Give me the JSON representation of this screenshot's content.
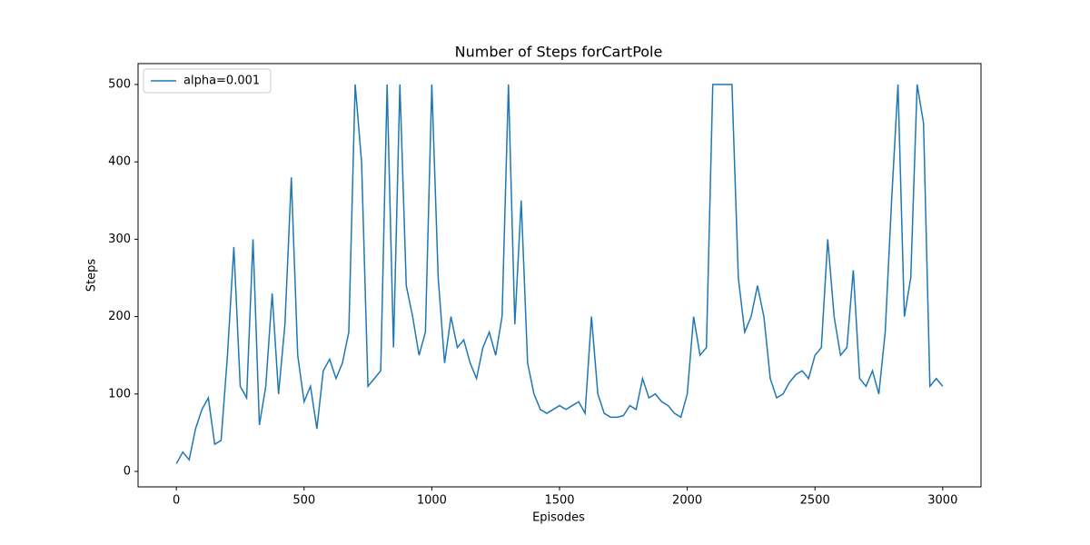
{
  "chart_data": {
    "type": "line",
    "title": "Number of Steps forCartPole",
    "x_label": "Episodes",
    "y_label": "Steps",
    "x": [
      0,
      25,
      50,
      75,
      100,
      125,
      150,
      175,
      200,
      225,
      250,
      275,
      300,
      325,
      350,
      375,
      400,
      425,
      450,
      475,
      500,
      525,
      550,
      575,
      600,
      625,
      650,
      675,
      700,
      725,
      750,
      775,
      800,
      825,
      850,
      875,
      900,
      925,
      950,
      975,
      1000,
      1025,
      1050,
      1075,
      1100,
      1125,
      1150,
      1175,
      1200,
      1225,
      1250,
      1275,
      1300,
      1325,
      1350,
      1375,
      1400,
      1425,
      1450,
      1475,
      1500,
      1525,
      1550,
      1575,
      1600,
      1625,
      1650,
      1675,
      1700,
      1725,
      1750,
      1775,
      1800,
      1825,
      1850,
      1875,
      1900,
      1925,
      1950,
      1975,
      2000,
      2025,
      2050,
      2075,
      2100,
      2125,
      2150,
      2175,
      2200,
      2225,
      2250,
      2275,
      2300,
      2325,
      2350,
      2375,
      2400,
      2425,
      2450,
      2475,
      2500,
      2525,
      2550,
      2575,
      2600,
      2625,
      2650,
      2675,
      2700,
      2725,
      2750,
      2775,
      2800,
      2825,
      2850,
      2875,
      2900,
      2925,
      2950,
      2975,
      3000
    ],
    "series": [
      {
        "name": "alpha=0.001",
        "color": "#1f77b4",
        "values": [
          10,
          25,
          15,
          55,
          80,
          95,
          35,
          40,
          150,
          290,
          110,
          95,
          300,
          60,
          110,
          230,
          100,
          190,
          380,
          150,
          90,
          110,
          55,
          130,
          145,
          120,
          140,
          180,
          500,
          400,
          110,
          120,
          130,
          500,
          160,
          500,
          240,
          200,
          150,
          180,
          500,
          250,
          140,
          200,
          160,
          170,
          140,
          120,
          160,
          180,
          150,
          200,
          500,
          190,
          350,
          140,
          100,
          80,
          75,
          80,
          85,
          80,
          85,
          90,
          75,
          200,
          100,
          75,
          70,
          70,
          72,
          85,
          80,
          120,
          95,
          100,
          90,
          85,
          75,
          70,
          100,
          200,
          150,
          160,
          500,
          500,
          500,
          500,
          250,
          180,
          200,
          240,
          200,
          120,
          95,
          100,
          115,
          125,
          130,
          120,
          150,
          160,
          300,
          200,
          150,
          160,
          260,
          120,
          110,
          130,
          100,
          180,
          350,
          500,
          200,
          250,
          500,
          450,
          110,
          120,
          110
        ]
      }
    ],
    "xlim": [
      -150,
      3150
    ],
    "ylim": [
      -20,
      527
    ],
    "xticks": [
      0,
      500,
      1000,
      1500,
      2000,
      2500,
      3000
    ],
    "yticks": [
      0,
      100,
      200,
      300,
      400,
      500
    ],
    "legend": "upper left"
  }
}
